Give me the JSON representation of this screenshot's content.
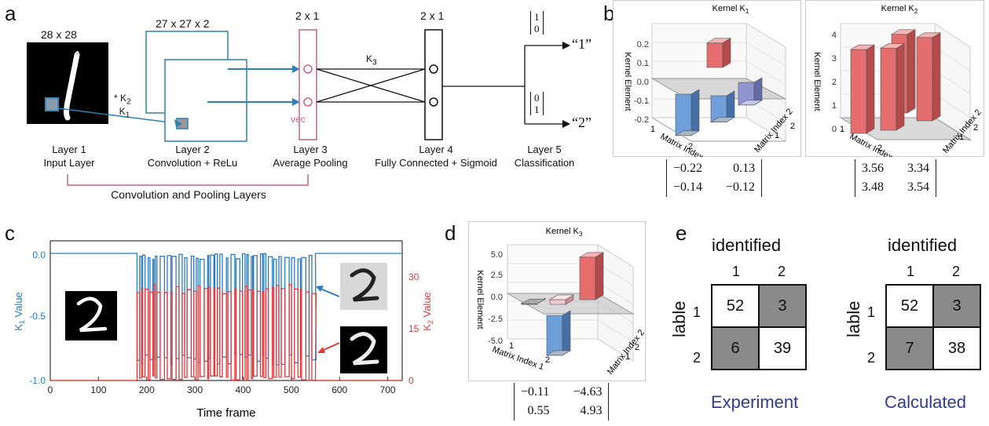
{
  "panels": {
    "a": {
      "label": "a",
      "input_size": "28 x 28",
      "conv_size": "27 x 27 x 2",
      "pool_size": "2 x 1",
      "fc_size": "2 x 1",
      "k2": "K",
      "k2_sub": "2",
      "k1": "K",
      "k1_sub": "1",
      "k3": "K",
      "k3_sub": "3",
      "star": "*",
      "vec": "vec",
      "vector_one": [
        "1",
        "0"
      ],
      "vector_two": [
        "0",
        "1"
      ],
      "out_one": "“1”",
      "out_two": "“2”",
      "layers": [
        {
          "title": "Layer 1",
          "desc": "Input Layer"
        },
        {
          "title": "Layer 2",
          "desc": "Convolution + ReLu"
        },
        {
          "title": "Layer 3",
          "desc": "Average Pooling"
        },
        {
          "title": "Layer 4",
          "desc": "Fully Connected + Sigmoid"
        },
        {
          "title": "Layer 5",
          "desc": "Classification"
        }
      ],
      "group_label": "Convolution and Pooling Layers"
    },
    "b": {
      "label": "b",
      "k1_title": "Kernel K",
      "k1_title_sub": "1",
      "k2_title": "Kernel K",
      "k2_title_sub": "2",
      "zlabel": "Kernel Element",
      "xlabel": "Matrix Index 1",
      "ylabel": "Matrix Index 2",
      "k1_ticks": [
        "0.2",
        "0.1",
        "0.0",
        "-0.1",
        "-0.2"
      ],
      "k2_ticks": [
        "4",
        "3",
        "2",
        "1",
        "0"
      ],
      "idx_ticks": [
        "1",
        "2"
      ],
      "k1_matrix": [
        [
          "−0.22",
          "0.13"
        ],
        [
          "−0.14",
          "−0.12"
        ]
      ],
      "k2_matrix": [
        [
          "3.56",
          "3.34"
        ],
        [
          "3.48",
          "3.54"
        ]
      ]
    },
    "c": {
      "label": "c",
      "xlabel": "Time frame",
      "ylabel_left": "K",
      "ylabel_left_sub": "1",
      "ylabel_left_tail": " Value",
      "ylabel_right": "K",
      "ylabel_right_sub": "2",
      "ylabel_right_tail": " Value",
      "left_ticks": [
        "0.0",
        "-0.5",
        "-1.0"
      ],
      "right_ticks": [
        "30",
        "15",
        "0"
      ],
      "x_ticks": [
        "0",
        "100",
        "200",
        "300",
        "400",
        "500",
        "600",
        "700"
      ],
      "colors": {
        "k1": "#2a7bbf",
        "k2": "#e2383a"
      }
    },
    "d": {
      "label": "d",
      "title": "Kernel K",
      "title_sub": "3",
      "zlabel": "Kernel Element",
      "xlabel": "Matrix Index 1",
      "ylabel": "Matrix Index 2",
      "ticks": [
        "5.0",
        "2.5",
        "0.0",
        "-2.5",
        "-5.0"
      ],
      "idx_ticks": [
        "1",
        "2"
      ],
      "matrix": [
        [
          "−0.11",
          "−4.63"
        ],
        [
          "0.55",
          "4.93"
        ]
      ]
    },
    "e": {
      "label": "e",
      "col_header": "identified",
      "row_header": "lable",
      "idx": [
        "1",
        "2"
      ],
      "experiment": {
        "name": "Experiment",
        "cells": [
          [
            "52",
            "3"
          ],
          [
            "6",
            "39"
          ]
        ]
      },
      "calculated": {
        "name": "Calculated",
        "cells": [
          [
            "52",
            "3"
          ],
          [
            "7",
            "38"
          ]
        ]
      }
    }
  },
  "chart_data": [
    {
      "type": "bar",
      "title": "Kernel K1",
      "categories": [
        "(1,1)",
        "(1,2)",
        "(2,1)",
        "(2,2)"
      ],
      "values": [
        -0.22,
        0.13,
        -0.14,
        -0.12
      ],
      "ylim": [
        -0.25,
        0.25
      ]
    },
    {
      "type": "bar",
      "title": "Kernel K2",
      "categories": [
        "(1,1)",
        "(1,2)",
        "(2,1)",
        "(2,2)"
      ],
      "values": [
        3.56,
        3.34,
        3.48,
        3.54
      ],
      "ylim": [
        0,
        4
      ]
    },
    {
      "type": "bar",
      "title": "Kernel K3",
      "categories": [
        "(1,1)",
        "(1,2)",
        "(2,1)",
        "(2,2)"
      ],
      "values": [
        -0.11,
        -4.63,
        0.55,
        4.93
      ],
      "ylim": [
        -5,
        5
      ]
    },
    {
      "type": "line",
      "xlabel": "Time frame",
      "xlim": [
        0,
        730
      ],
      "series": [
        {
          "name": "K1 Value",
          "axis": "left",
          "ylim": [
            -1.0,
            0.05
          ],
          "baseline": 0.0,
          "low": -0.88,
          "active_range": [
            180,
            550
          ]
        },
        {
          "name": "K2 Value",
          "axis": "right",
          "ylim": [
            0,
            33
          ],
          "baseline": 0,
          "high": 25,
          "active_range": [
            180,
            550
          ]
        }
      ]
    }
  ]
}
